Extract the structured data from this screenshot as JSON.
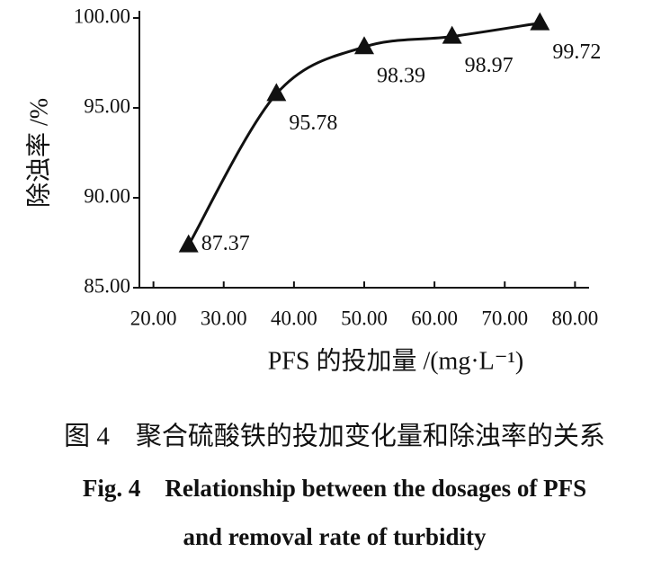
{
  "chart_data": {
    "type": "line",
    "y_label": "除浊率 /%",
    "x_label": "PFS 的投加量 /(mg·L⁻¹)",
    "x": [
      25,
      37.5,
      50,
      62.5,
      75
    ],
    "series": [
      {
        "color": "#111111",
        "values": [
          87.37,
          95.78,
          98.39,
          98.97,
          99.72
        ]
      }
    ],
    "xlim": [
      18,
      82
    ],
    "xticks": [
      {
        "value": 20,
        "label": "20.00"
      },
      {
        "value": 30,
        "label": "30.00"
      },
      {
        "value": 40,
        "label": "40.00"
      },
      {
        "value": 50,
        "label": "50.00"
      },
      {
        "value": 60,
        "label": "60.00"
      },
      {
        "value": 70,
        "label": "70.00"
      },
      {
        "value": 80,
        "label": "80.00"
      }
    ],
    "ylim": [
      85,
      100.4
    ],
    "yticks": [
      {
        "value": 85,
        "label": "85.00"
      },
      {
        "value": 90,
        "label": "90.00"
      },
      {
        "value": 95,
        "label": "95.00"
      },
      {
        "value": 100,
        "label": "100.00"
      }
    ],
    "caption": [
      "图 4　聚合硫酸铁的投加变化量和除浊率的关系",
      "Fig. 4　Relationship between the dosages of PFS",
      "and removal rate of turbidity"
    ]
  }
}
